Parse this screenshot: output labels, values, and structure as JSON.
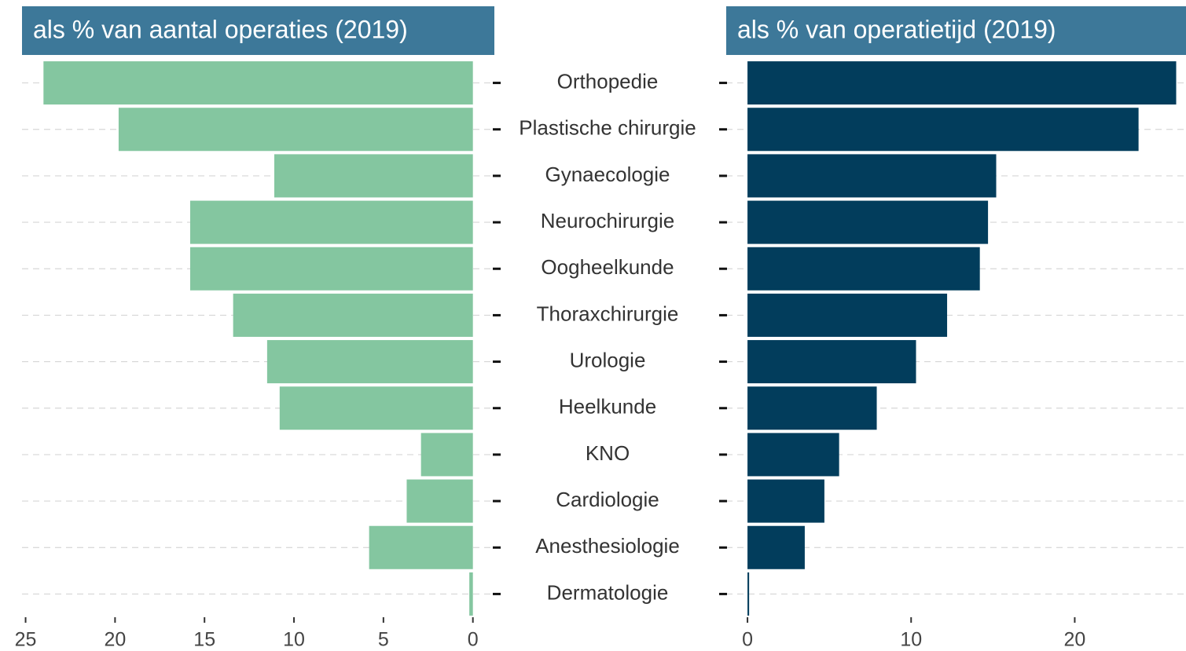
{
  "chart_data": {
    "type": "bar",
    "orientation": "horizontal",
    "grid": true,
    "categories": [
      "Orthopedie",
      "Plastische chirurgie",
      "Gynaecologie",
      "Neurochirurgie",
      "Oogheelkunde",
      "Thoraxchirurgie",
      "Urologie",
      "Heelkunde",
      "KNO",
      "Cardiologie",
      "Anesthesiologie",
      "Dermatologie"
    ],
    "series": [
      {
        "name": "als % van aantal operaties (2019)",
        "color": "#84c6a0",
        "x_reversed": true,
        "values": [
          24.0,
          19.8,
          11.1,
          15.8,
          15.8,
          13.4,
          11.5,
          10.8,
          2.9,
          3.7,
          5.8,
          0.2
        ],
        "xlim": [
          -1.2,
          25.2
        ],
        "xticks": [
          0,
          5,
          10,
          15,
          20,
          25
        ]
      },
      {
        "name": "als % van operatietijd (2019)",
        "color": "#023d5c",
        "x_reversed": false,
        "values": [
          26.2,
          23.9,
          15.2,
          14.7,
          14.2,
          12.2,
          10.3,
          7.9,
          5.6,
          4.7,
          3.5,
          0.1
        ],
        "xlim": [
          -1.3,
          26.8
        ],
        "xticks": [
          0,
          10,
          20
        ]
      }
    ]
  }
}
